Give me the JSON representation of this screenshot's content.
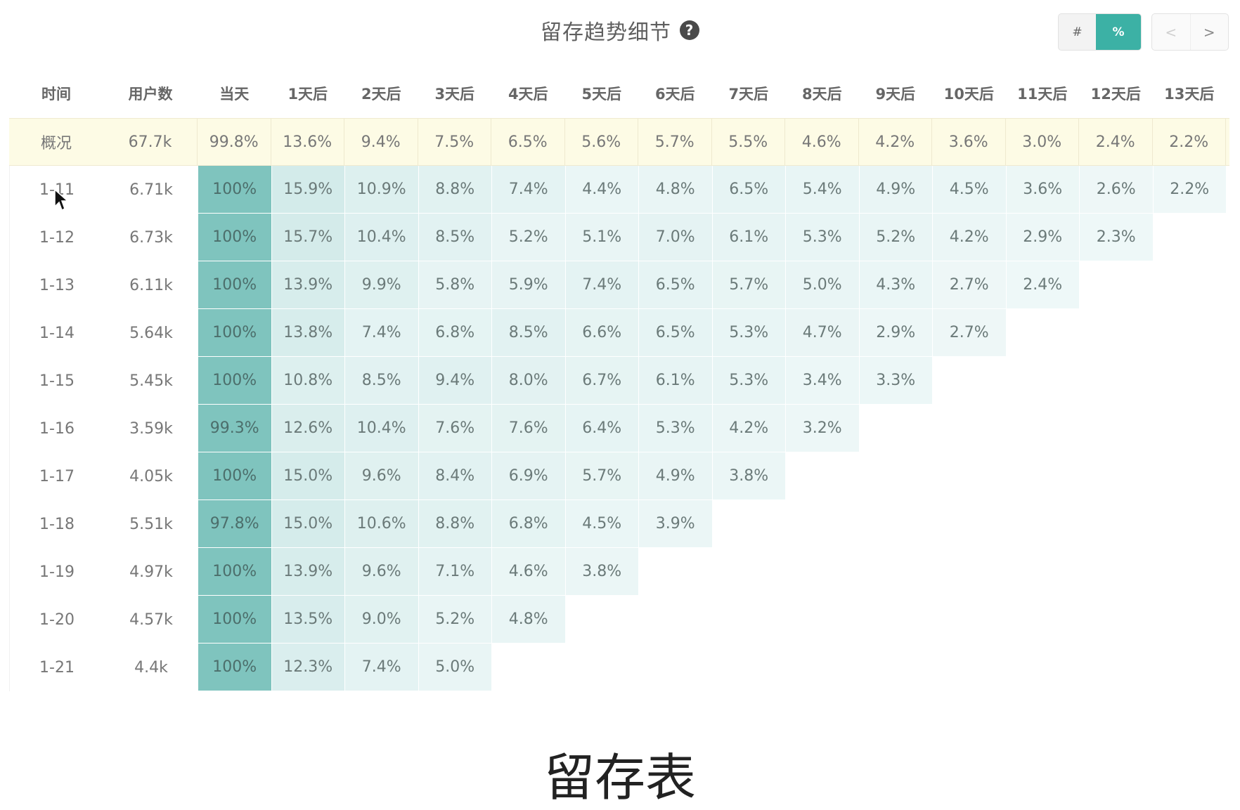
{
  "header": {
    "title": "留存趋势细节",
    "help_icon": "question-circle-icon",
    "toggle": {
      "count_label": "#",
      "percent_label": "%",
      "active": "percent"
    },
    "pager": {
      "prev_label": "<",
      "next_label": ">"
    }
  },
  "table": {
    "columns": [
      "时间",
      "用户数",
      "当天",
      "1天后",
      "2天后",
      "3天后",
      "4天后",
      "5天后",
      "6天后",
      "7天后",
      "8天后",
      "9天后",
      "10天后",
      "11天后",
      "12天后",
      "13天后"
    ],
    "summary": {
      "date": "概况",
      "users": "67.7k",
      "values": [
        "99.8%",
        "13.6%",
        "9.4%",
        "7.5%",
        "6.5%",
        "5.6%",
        "5.7%",
        "5.5%",
        "4.6%",
        "4.2%",
        "3.6%",
        "3.0%",
        "2.4%",
        "2.2%"
      ]
    },
    "rows": [
      {
        "date": "1-11",
        "users": "6.71k",
        "values": [
          "100%",
          "15.9%",
          "10.9%",
          "8.8%",
          "7.4%",
          "4.4%",
          "4.8%",
          "6.5%",
          "5.4%",
          "4.9%",
          "4.5%",
          "3.6%",
          "2.6%",
          "2.2%"
        ]
      },
      {
        "date": "1-12",
        "users": "6.73k",
        "values": [
          "100%",
          "15.7%",
          "10.4%",
          "8.5%",
          "5.2%",
          "5.1%",
          "7.0%",
          "6.1%",
          "5.3%",
          "5.2%",
          "4.2%",
          "2.9%",
          "2.3%"
        ]
      },
      {
        "date": "1-13",
        "users": "6.11k",
        "values": [
          "100%",
          "13.9%",
          "9.9%",
          "5.8%",
          "5.9%",
          "7.4%",
          "6.5%",
          "5.7%",
          "5.0%",
          "4.3%",
          "2.7%",
          "2.4%"
        ]
      },
      {
        "date": "1-14",
        "users": "5.64k",
        "values": [
          "100%",
          "13.8%",
          "7.4%",
          "6.8%",
          "8.5%",
          "6.6%",
          "6.5%",
          "5.3%",
          "4.7%",
          "2.9%",
          "2.7%"
        ]
      },
      {
        "date": "1-15",
        "users": "5.45k",
        "values": [
          "100%",
          "10.8%",
          "8.5%",
          "9.4%",
          "8.0%",
          "6.7%",
          "6.1%",
          "5.3%",
          "3.4%",
          "3.3%"
        ]
      },
      {
        "date": "1-16",
        "users": "3.59k",
        "values": [
          "99.3%",
          "12.6%",
          "10.4%",
          "7.6%",
          "7.6%",
          "6.4%",
          "5.3%",
          "4.2%",
          "3.2%"
        ]
      },
      {
        "date": "1-17",
        "users": "4.05k",
        "values": [
          "100%",
          "15.0%",
          "9.6%",
          "8.4%",
          "6.9%",
          "5.7%",
          "4.9%",
          "3.8%"
        ]
      },
      {
        "date": "1-18",
        "users": "5.51k",
        "values": [
          "97.8%",
          "15.0%",
          "10.6%",
          "8.8%",
          "6.8%",
          "4.5%",
          "3.9%"
        ]
      },
      {
        "date": "1-19",
        "users": "4.97k",
        "values": [
          "100%",
          "13.9%",
          "9.6%",
          "7.1%",
          "4.6%",
          "3.8%"
        ]
      },
      {
        "date": "1-20",
        "users": "4.57k",
        "values": [
          "100%",
          "13.5%",
          "9.0%",
          "5.2%",
          "4.8%"
        ]
      },
      {
        "date": "1-21",
        "users": "4.4k",
        "values": [
          "100%",
          "12.3%",
          "7.4%",
          "5.0%"
        ]
      }
    ]
  },
  "caption": "留存表",
  "colors": {
    "accent": "#3cb1a5",
    "summary_bg": "#fdfbe5",
    "heat_high": "#7fc4be",
    "heat_low": "#eef8f8"
  },
  "cursor_icon": "mouse-pointer-icon"
}
